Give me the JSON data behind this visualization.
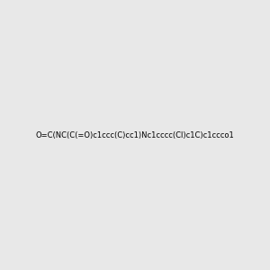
{
  "smiles": "O=C(NC(C(=O)c1ccc(C)cc1)Nc1cccc(Cl)c1C)c1ccco1",
  "image_size": 300,
  "background_color": "#e8e8e8",
  "title": ""
}
